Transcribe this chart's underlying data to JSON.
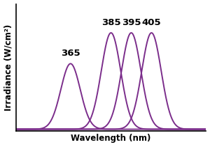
{
  "title": "",
  "xlabel": "Wavelength (nm)",
  "ylabel": "Irradiance (W/cm²)",
  "peaks": [
    365,
    385,
    395,
    405
  ],
  "peak_labels": [
    "365",
    "385",
    "395",
    "405"
  ],
  "sigma": 4.8,
  "amplitudes": [
    0.68,
    1.0,
    1.0,
    1.0
  ],
  "line_color": "#7B2D8B",
  "background_color": "#ffffff",
  "xmin": 338,
  "xmax": 432,
  "ylim_min": -0.02,
  "ylim_max": 1.3,
  "xlabel_fontsize": 8.5,
  "ylabel_fontsize": 8.5,
  "label_fontsize": 9.5,
  "label_fontweight": "bold",
  "linewidth": 1.4
}
